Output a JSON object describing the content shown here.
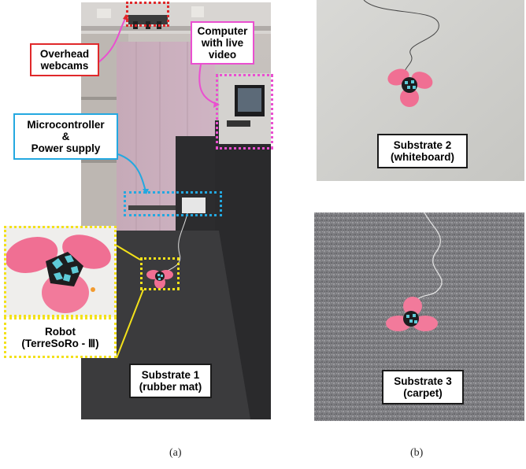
{
  "labels": {
    "overhead": [
      "Overhead",
      "webcams"
    ],
    "computer": [
      "Computer",
      "with live",
      "video"
    ],
    "micro": [
      "Microcontroller",
      "&",
      "Power supply"
    ],
    "robot": [
      "Robot",
      "(TerreSoRo - Ⅲ)"
    ],
    "substrate1": [
      "Substrate 1",
      "(rubber mat)"
    ],
    "substrate2": [
      "Substrate 2",
      "(whiteboard)"
    ],
    "substrate3": [
      "Substrate 3",
      "(carpet)"
    ]
  },
  "captions": {
    "a": "(a)",
    "b": "(b)"
  },
  "colors": {
    "red": "#e0282a",
    "magenta": "#ea4fd0",
    "blue": "#24a8e0",
    "yellow": "#f3e11a",
    "robot_pink": "#f06f93",
    "robot_tiles": "#5ecad8"
  }
}
